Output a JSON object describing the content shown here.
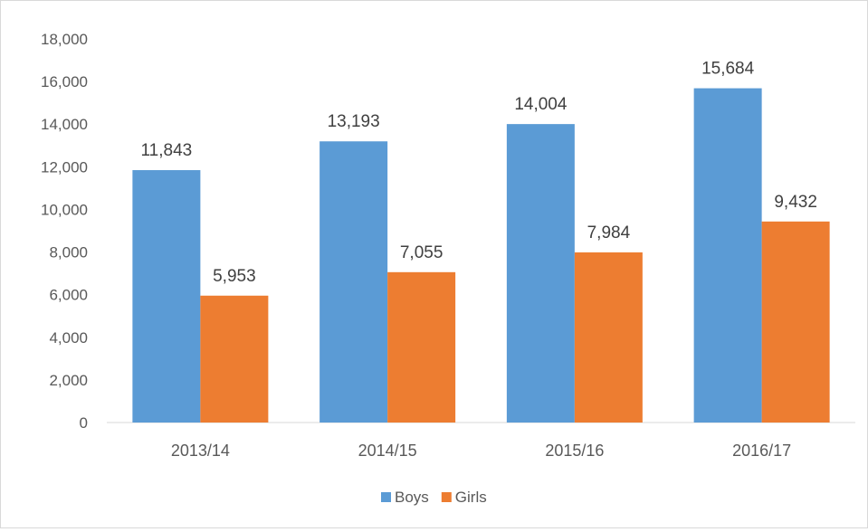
{
  "chart_data": {
    "type": "bar",
    "categories": [
      "2013/14",
      "2014/15",
      "2015/16",
      "2016/17"
    ],
    "series": [
      {
        "name": "Boys",
        "values": [
          11843,
          13193,
          14004,
          15684
        ],
        "color": "#5b9bd5"
      },
      {
        "name": "Girls",
        "values": [
          5953,
          7055,
          7984,
          9432
        ],
        "color": "#ed7d31"
      }
    ],
    "data_labels": {
      "Boys": [
        "11,843",
        "13,193",
        "14,004",
        "15,684"
      ],
      "Girls": [
        "5,953",
        "7,055",
        "7,984",
        "9,432"
      ]
    },
    "y_ticks": [
      "0",
      "2,000",
      "4,000",
      "6,000",
      "8,000",
      "10,000",
      "12,000",
      "14,000",
      "16,000",
      "18,000"
    ],
    "ylim": [
      0,
      18000
    ],
    "title": "",
    "xlabel": "",
    "ylabel": "",
    "grid": false,
    "legend_position": "bottom"
  }
}
